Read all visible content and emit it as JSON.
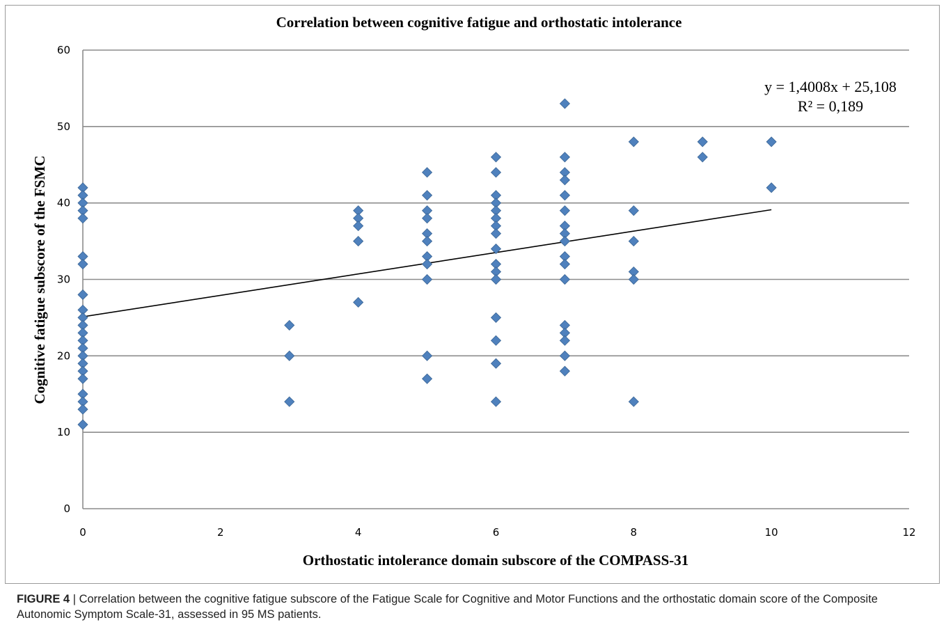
{
  "chart_data": {
    "type": "scatter",
    "title": "Correlation between cognitive fatigue and orthostatic intolerance",
    "xlabel": "Orthostatic intolerance domain subscore of the COMPASS-31",
    "ylabel": "Cognitive fatigue subscore of the FSMC",
    "xlim": [
      0,
      12
    ],
    "ylim": [
      0,
      60
    ],
    "x_ticks": [
      0,
      2,
      4,
      6,
      8,
      10,
      12
    ],
    "y_ticks": [
      0,
      10,
      20,
      30,
      40,
      50,
      60
    ],
    "grid": "horizontal",
    "marker_color": "#4f81bd",
    "trendline": {
      "slope": 1.4008,
      "intercept": 25.108,
      "x_range": [
        0,
        10
      ]
    },
    "equation_lines": [
      "y = 1,4008x + 25,108",
      "R² = 0,189"
    ],
    "points": [
      [
        0,
        42
      ],
      [
        0,
        41
      ],
      [
        0,
        40
      ],
      [
        0,
        39
      ],
      [
        0,
        38
      ],
      [
        0,
        33
      ],
      [
        0,
        32
      ],
      [
        0,
        28
      ],
      [
        0,
        26
      ],
      [
        0,
        25
      ],
      [
        0,
        24
      ],
      [
        0,
        23
      ],
      [
        0,
        22
      ],
      [
        0,
        21
      ],
      [
        0,
        20
      ],
      [
        0,
        19
      ],
      [
        0,
        18
      ],
      [
        0,
        17
      ],
      [
        0,
        15
      ],
      [
        0,
        14
      ],
      [
        0,
        13
      ],
      [
        0,
        11
      ],
      [
        3,
        24
      ],
      [
        3,
        20
      ],
      [
        3,
        14
      ],
      [
        4,
        39
      ],
      [
        4,
        38
      ],
      [
        4,
        37
      ],
      [
        4,
        35
      ],
      [
        4,
        27
      ],
      [
        5,
        44
      ],
      [
        5,
        41
      ],
      [
        5,
        39
      ],
      [
        5,
        38
      ],
      [
        5,
        36
      ],
      [
        5,
        35
      ],
      [
        5,
        33
      ],
      [
        5,
        32
      ],
      [
        5,
        30
      ],
      [
        5,
        20
      ],
      [
        5,
        17
      ],
      [
        6,
        46
      ],
      [
        6,
        44
      ],
      [
        6,
        41
      ],
      [
        6,
        40
      ],
      [
        6,
        39
      ],
      [
        6,
        38
      ],
      [
        6,
        37
      ],
      [
        6,
        36
      ],
      [
        6,
        34
      ],
      [
        6,
        32
      ],
      [
        6,
        31
      ],
      [
        6,
        30
      ],
      [
        6,
        25
      ],
      [
        6,
        22
      ],
      [
        6,
        19
      ],
      [
        6,
        14
      ],
      [
        7,
        53
      ],
      [
        7,
        46
      ],
      [
        7,
        44
      ],
      [
        7,
        43
      ],
      [
        7,
        41
      ],
      [
        7,
        39
      ],
      [
        7,
        37
      ],
      [
        7,
        36
      ],
      [
        7,
        35
      ],
      [
        7,
        33
      ],
      [
        7,
        32
      ],
      [
        7,
        30
      ],
      [
        7,
        24
      ],
      [
        7,
        23
      ],
      [
        7,
        22
      ],
      [
        7,
        20
      ],
      [
        7,
        18
      ],
      [
        8,
        48
      ],
      [
        8,
        39
      ],
      [
        8,
        35
      ],
      [
        8,
        31
      ],
      [
        8,
        30
      ],
      [
        8,
        14
      ],
      [
        9,
        48
      ],
      [
        9,
        46
      ],
      [
        10,
        48
      ],
      [
        10,
        42
      ]
    ]
  },
  "caption": {
    "label": "FIGURE 4",
    "text": " | Correlation between the cognitive fatigue subscore of the Fatigue Scale for Cognitive and Motor Functions and the orthostatic domain score of the Composite Autonomic Symptom Scale-31, assessed in 95 MS patients."
  }
}
